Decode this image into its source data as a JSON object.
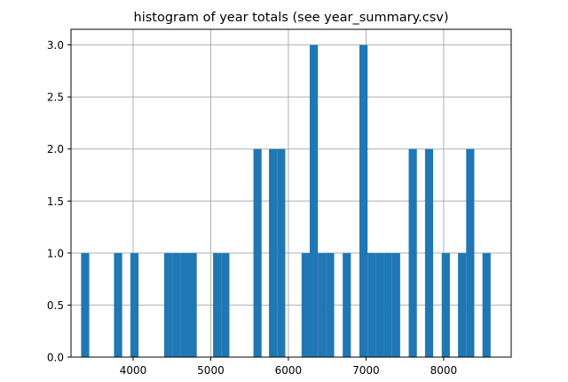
{
  "chart_data": {
    "type": "bar",
    "title": "histogram of year totals (see year_summary.csv)",
    "xlabel": "",
    "ylabel": "",
    "xlim": [
      3200,
      8870
    ],
    "ylim": [
      0,
      3.15
    ],
    "bin_width": 105,
    "grid": true,
    "bar_color": "#1f77b4",
    "xticks": [
      4000,
      5000,
      6000,
      7000,
      8000
    ],
    "xtick_labels": [
      "4000",
      "5000",
      "6000",
      "7000",
      "8000"
    ],
    "yticks": [
      0.0,
      0.5,
      1.0,
      1.5,
      2.0,
      2.5,
      3.0
    ],
    "ytick_labels": [
      "0.0",
      "0.5",
      "1.0",
      "1.5",
      "2.0",
      "2.5",
      "3.0"
    ],
    "bins": [
      {
        "x_start": 3330,
        "count": 1
      },
      {
        "x_start": 3754,
        "count": 1
      },
      {
        "x_start": 3965,
        "count": 1
      },
      {
        "x_start": 4400,
        "count": 1
      },
      {
        "x_start": 4505,
        "count": 1
      },
      {
        "x_start": 4610,
        "count": 1
      },
      {
        "x_start": 4715,
        "count": 1
      },
      {
        "x_start": 5030,
        "count": 1
      },
      {
        "x_start": 5135,
        "count": 1
      },
      {
        "x_start": 5550,
        "count": 2
      },
      {
        "x_start": 5750,
        "count": 2
      },
      {
        "x_start": 5855,
        "count": 2
      },
      {
        "x_start": 6170,
        "count": 1
      },
      {
        "x_start": 6275,
        "count": 3
      },
      {
        "x_start": 6380,
        "count": 1
      },
      {
        "x_start": 6485,
        "count": 1
      },
      {
        "x_start": 6700,
        "count": 1
      },
      {
        "x_start": 6915,
        "count": 3
      },
      {
        "x_start": 7020,
        "count": 1
      },
      {
        "x_start": 7125,
        "count": 1
      },
      {
        "x_start": 7230,
        "count": 1
      },
      {
        "x_start": 7335,
        "count": 1
      },
      {
        "x_start": 7550,
        "count": 2
      },
      {
        "x_start": 7760,
        "count": 2
      },
      {
        "x_start": 7975,
        "count": 1
      },
      {
        "x_start": 8185,
        "count": 1
      },
      {
        "x_start": 8290,
        "count": 2
      },
      {
        "x_start": 8500,
        "count": 1
      }
    ]
  }
}
